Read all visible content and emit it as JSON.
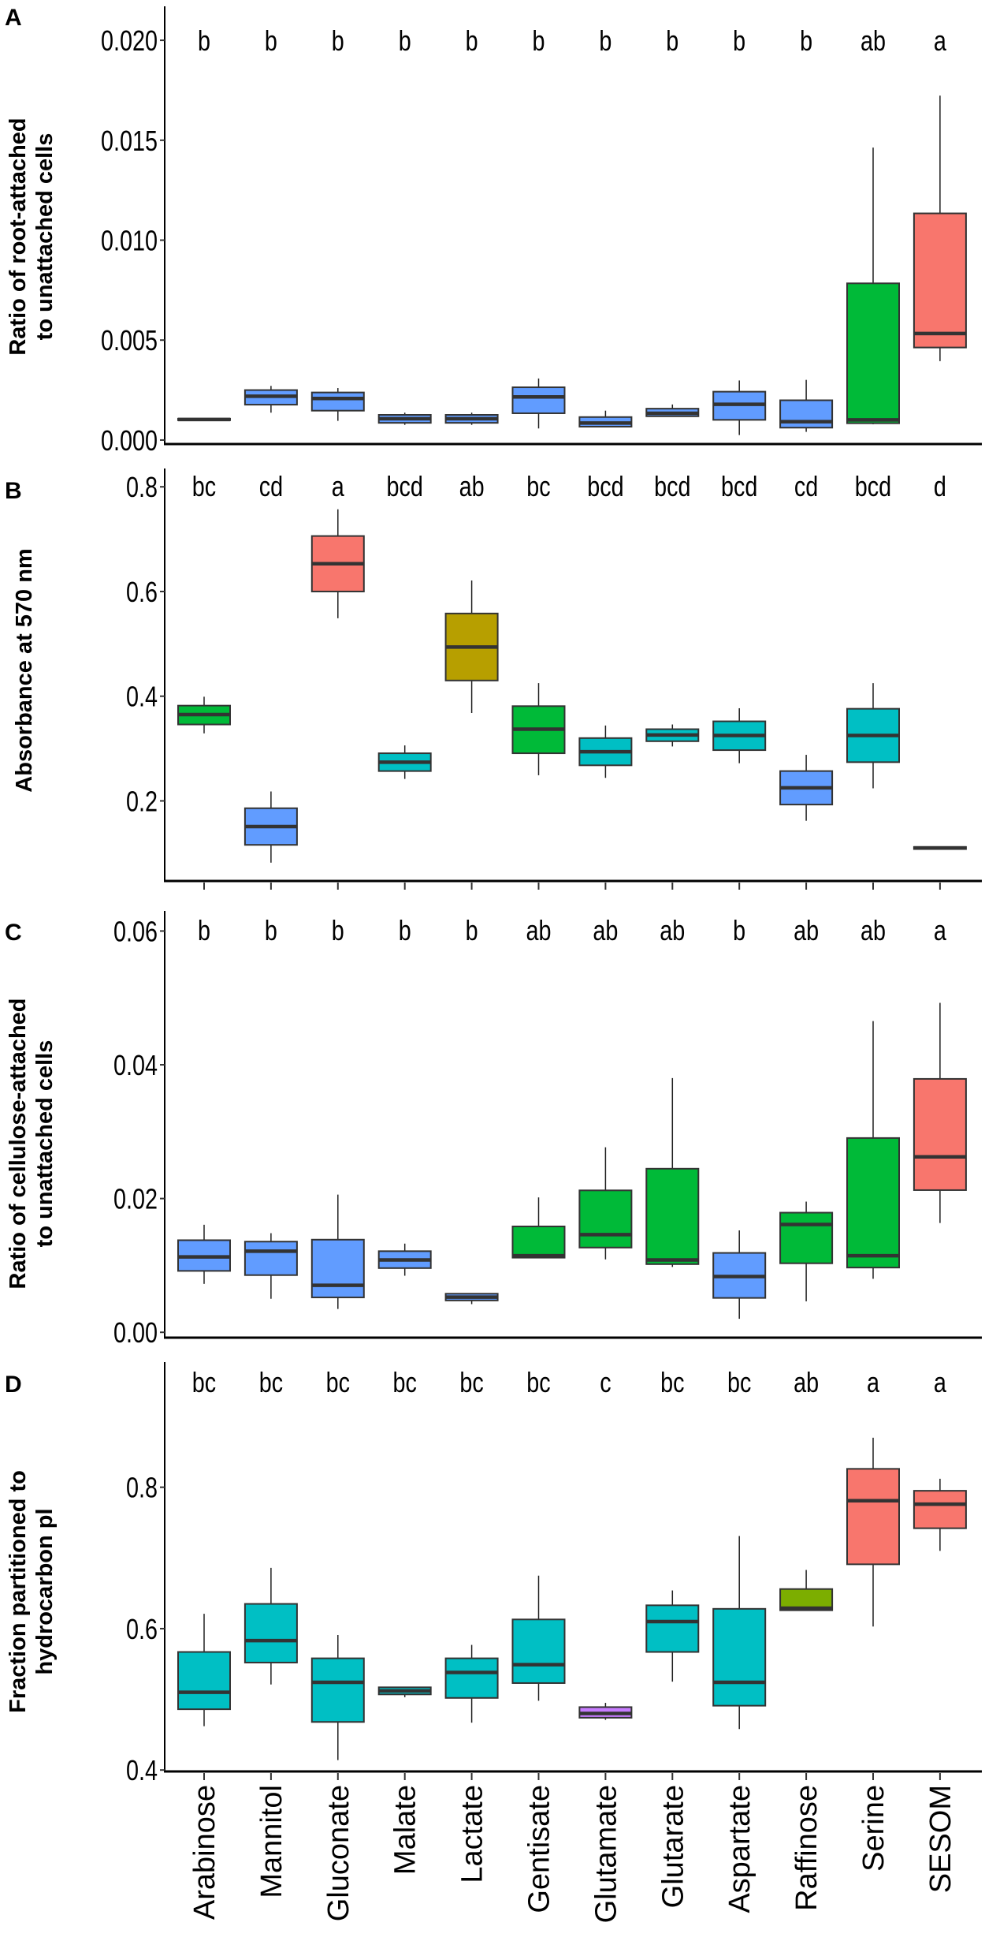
{
  "chart_data": [
    {
      "type": "box",
      "panel": "A",
      "ylabel": [
        "Ratio of root-attached",
        "to unattached cells"
      ],
      "ylim": [
        -0.0002,
        0.0217
      ],
      "yticks": [
        0.0,
        0.005,
        0.01,
        0.015,
        0.02
      ],
      "ytick_labels": [
        "0.000",
        "0.005",
        "0.010",
        "0.015",
        "0.020"
      ],
      "x_ticks_shown": false,
      "categories": [
        "Arabinose",
        "Mannitol",
        "Gluconate",
        "Malate",
        "Lactate",
        "Gentisate",
        "Glutamate",
        "Glutarate",
        "Aspartate",
        "Raffinose",
        "Serine",
        "SESOM"
      ],
      "letters": [
        "b",
        "b",
        "b",
        "b",
        "b",
        "b",
        "b",
        "b",
        "b",
        "b",
        "ab",
        "a"
      ],
      "colors": [
        "#619CFF",
        "#619CFF",
        "#619CFF",
        "#619CFF",
        "#619CFF",
        "#619CFF",
        "#619CFF",
        "#619CFF",
        "#619CFF",
        "#619CFF",
        "#00BA38",
        "#F8766D"
      ],
      "stats_order": [
        "min",
        "q1",
        "median",
        "q3",
        "max"
      ],
      "stats": [
        [
          0.00099,
          0.001,
          0.00103,
          0.00107,
          0.00108
        ],
        [
          0.00137,
          0.00177,
          0.00219,
          0.0025,
          0.00271
        ],
        [
          0.00096,
          0.00147,
          0.00208,
          0.00238,
          0.0026
        ],
        [
          0.00076,
          0.00086,
          0.00107,
          0.00126,
          0.00137
        ],
        [
          0.00076,
          0.00086,
          0.00107,
          0.00126,
          0.00137
        ],
        [
          0.00058,
          0.00134,
          0.00216,
          0.00264,
          0.00308
        ],
        [
          0.00067,
          0.00067,
          0.00085,
          0.00115,
          0.00147
        ],
        [
          0.00119,
          0.00119,
          0.00134,
          0.00157,
          0.00178
        ],
        [
          0.00025,
          0.00101,
          0.00179,
          0.00242,
          0.00298
        ],
        [
          0.00041,
          0.00062,
          0.00092,
          0.00199,
          0.00301
        ],
        [
          0.00079,
          0.00084,
          0.00101,
          0.00784,
          0.01463
        ],
        [
          0.00395,
          0.00463,
          0.00533,
          0.01134,
          0.01723
        ]
      ]
    },
    {
      "type": "box",
      "panel": "B",
      "ylabel": [
        "Absorbance at 570 nm"
      ],
      "ylim": [
        0.047,
        0.835
      ],
      "yticks": [
        0.2,
        0.4,
        0.6,
        0.8
      ],
      "ytick_labels": [
        "0.2",
        "0.4",
        "0.6",
        "0.8"
      ],
      "x_ticks_shown": true,
      "categories": [
        "Arabinose",
        "Mannitol",
        "Gluconate",
        "Malate",
        "Lactate",
        "Gentisate",
        "Glutamate",
        "Glutarate",
        "Aspartate",
        "Raffinose",
        "Serine",
        "SESOM"
      ],
      "letters": [
        "bc",
        "cd",
        "a",
        "bcd",
        "ab",
        "bc",
        "bcd",
        "bcd",
        "bcd",
        "cd",
        "bcd",
        "d"
      ],
      "colors": [
        "#00BA38",
        "#619CFF",
        "#F8766D",
        "#00BFC4",
        "#B79F00",
        "#00BA38",
        "#00BFC4",
        "#00BFC4",
        "#00BFC4",
        "#619CFF",
        "#00BFC4",
        "#00BFC4"
      ],
      "stats_order": [
        "min",
        "q1",
        "median",
        "q3",
        "max"
      ],
      "stats": [
        [
          0.329,
          0.346,
          0.365,
          0.382,
          0.399
        ],
        [
          0.082,
          0.116,
          0.151,
          0.186,
          0.218
        ],
        [
          0.549,
          0.6,
          0.653,
          0.706,
          0.757
        ],
        [
          0.242,
          0.257,
          0.274,
          0.291,
          0.306
        ],
        [
          0.368,
          0.43,
          0.494,
          0.558,
          0.621
        ],
        [
          0.249,
          0.291,
          0.337,
          0.381,
          0.425
        ],
        [
          0.244,
          0.268,
          0.294,
          0.32,
          0.344
        ],
        [
          0.304,
          0.314,
          0.326,
          0.337,
          0.346
        ],
        [
          0.272,
          0.297,
          0.325,
          0.352,
          0.377
        ],
        [
          0.162,
          0.193,
          0.225,
          0.257,
          0.288
        ],
        [
          0.224,
          0.274,
          0.325,
          0.376,
          0.425
        ],
        [
          0.107,
          0.108,
          0.11,
          0.112,
          0.113
        ]
      ]
    },
    {
      "type": "box",
      "panel": "C",
      "ylabel": [
        "Ratio of cellulose-attached",
        "to unattached cells"
      ],
      "ylim": [
        -0.0008,
        0.063
      ],
      "yticks": [
        0.0,
        0.02,
        0.04,
        0.06
      ],
      "ytick_labels": [
        "0.00",
        "0.02",
        "0.04",
        "0.06"
      ],
      "x_ticks_shown": false,
      "categories": [
        "Arabinose",
        "Mannitol",
        "Gluconate",
        "Malate",
        "Lactate",
        "Gentisate",
        "Glutamate",
        "Glutarate",
        "Aspartate",
        "Raffinose",
        "Serine",
        "SESOM"
      ],
      "letters": [
        "b",
        "b",
        "b",
        "b",
        "b",
        "ab",
        "ab",
        "ab",
        "b",
        "ab",
        "ab",
        "a"
      ],
      "colors": [
        "#619CFF",
        "#619CFF",
        "#619CFF",
        "#619CFF",
        "#619CFF",
        "#00BA38",
        "#00BA38",
        "#00BA38",
        "#619CFF",
        "#00BA38",
        "#00BA38",
        "#F8766D"
      ],
      "stats_order": [
        "min",
        "q1",
        "median",
        "q3",
        "max"
      ],
      "stats": [
        [
          0.00724,
          0.00918,
          0.01128,
          0.01377,
          0.01608
        ],
        [
          0.00501,
          0.00855,
          0.01213,
          0.01356,
          0.01482
        ],
        [
          0.00349,
          0.00522,
          0.00703,
          0.01385,
          0.02059
        ],
        [
          0.00846,
          0.0096,
          0.01082,
          0.01213,
          0.01326
        ],
        [
          0.00421,
          0.00476,
          0.00526,
          0.00577,
          0.00577
        ],
        [
          0.01116,
          0.01116,
          0.01145,
          0.01583,
          0.02017
        ],
        [
          0.01091,
          0.01267,
          0.01461,
          0.02122,
          0.02766
        ],
        [
          0.00977,
          0.01019,
          0.01082,
          0.02446,
          0.03802
        ],
        [
          0.00202,
          0.00514,
          0.00834,
          0.01187,
          0.01524
        ],
        [
          0.00463,
          0.01032,
          0.01613,
          0.01789,
          0.01954
        ],
        [
          0.008,
          0.00968,
          0.01145,
          0.02905,
          0.04653
        ],
        [
          0.01634,
          0.02126,
          0.02623,
          0.03789,
          0.04926
        ]
      ]
    },
    {
      "type": "box",
      "panel": "D",
      "ylabel": [
        "Fraction partitioned to",
        "hydrocarbon pl"
      ],
      "ylim": [
        0.398,
        0.977
      ],
      "yticks": [
        0.4,
        0.6,
        0.8
      ],
      "ytick_labels": [
        "0.4",
        "0.6",
        "0.8"
      ],
      "x_ticks_shown": true,
      "categories": [
        "Arabinose",
        "Mannitol",
        "Gluconate",
        "Malate",
        "Lactate",
        "Gentisate",
        "Glutamate",
        "Glutarate",
        "Aspartate",
        "Raffinose",
        "Serine",
        "SESOM"
      ],
      "letters": [
        "bc",
        "bc",
        "bc",
        "bc",
        "bc",
        "bc",
        "c",
        "bc",
        "bc",
        "ab",
        "a",
        "a"
      ],
      "colors": [
        "#00BFC4",
        "#00BFC4",
        "#00BFC4",
        "#00BFC4",
        "#00BFC4",
        "#00BFC4",
        "#C77CFF",
        "#00BFC4",
        "#00BFC4",
        "#7CAE00",
        "#F8766D",
        "#F8766D"
      ],
      "stats_order": [
        "min",
        "q1",
        "median",
        "q3",
        "max"
      ],
      "stats": [
        [
          0.462,
          0.486,
          0.51,
          0.567,
          0.621
        ],
        [
          0.521,
          0.552,
          0.583,
          0.635,
          0.686
        ],
        [
          0.414,
          0.468,
          0.524,
          0.558,
          0.591
        ],
        [
          0.503,
          0.507,
          0.512,
          0.517,
          0.517
        ],
        [
          0.467,
          0.502,
          0.538,
          0.558,
          0.577
        ],
        [
          0.498,
          0.523,
          0.549,
          0.613,
          0.675
        ],
        [
          0.471,
          0.474,
          0.48,
          0.489,
          0.495
        ],
        [
          0.525,
          0.567,
          0.61,
          0.633,
          0.654
        ],
        [
          0.458,
          0.491,
          0.524,
          0.628,
          0.731
        ],
        [
          0.626,
          0.626,
          0.629,
          0.656,
          0.683
        ],
        [
          0.603,
          0.691,
          0.781,
          0.826,
          0.87
        ],
        [
          0.71,
          0.742,
          0.776,
          0.795,
          0.812
        ]
      ]
    }
  ],
  "x_axis_labels": [
    "Arabinose",
    "Mannitol",
    "Gluconate",
    "Malate",
    "Lactate",
    "Gentisate",
    "Glutamate",
    "Glutarate",
    "Aspartate",
    "Raffinose",
    "Serine",
    "SESOM"
  ]
}
